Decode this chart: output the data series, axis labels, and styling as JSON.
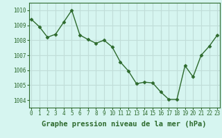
{
  "x": [
    0,
    1,
    2,
    3,
    4,
    5,
    6,
    7,
    8,
    9,
    10,
    11,
    12,
    13,
    14,
    15,
    16,
    17,
    18,
    19,
    20,
    21,
    22,
    23
  ],
  "y": [
    1009.4,
    1008.9,
    1008.2,
    1008.4,
    1009.2,
    1010.0,
    1008.35,
    1008.05,
    1007.8,
    1008.0,
    1007.55,
    1006.55,
    1005.95,
    1005.1,
    1005.2,
    1005.15,
    1004.55,
    1004.05,
    1004.05,
    1006.3,
    1005.55,
    1007.0,
    1007.6,
    1008.35
  ],
  "line_color": "#2d6a2d",
  "marker": "D",
  "marker_size": 2.5,
  "line_width": 1.0,
  "bg_color": "#d6f5f0",
  "grid_color": "#c0ddd8",
  "xlabel": "Graphe pression niveau de la mer (hPa)",
  "xlabel_fontsize": 7.5,
  "xlabel_color": "#2d6a2d",
  "tick_fontsize": 5.5,
  "ylim": [
    1003.5,
    1010.5
  ],
  "yticks": [
    1004,
    1005,
    1006,
    1007,
    1008,
    1009,
    1010
  ],
  "xticks": [
    0,
    1,
    2,
    3,
    4,
    5,
    6,
    7,
    8,
    9,
    10,
    11,
    12,
    13,
    14,
    15,
    16,
    17,
    18,
    19,
    20,
    21,
    22,
    23
  ],
  "xlim": [
    -0.3,
    23.3
  ]
}
